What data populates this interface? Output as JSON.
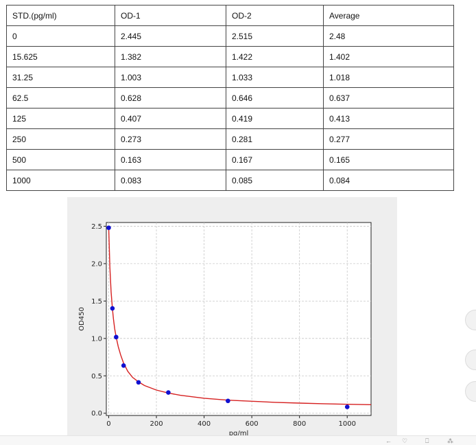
{
  "table": {
    "headers": [
      "STD.(pg/ml)",
      "OD-1",
      "OD-2",
      "Average"
    ],
    "rows": [
      [
        "0",
        "2.445",
        "2.515",
        "2.48"
      ],
      [
        "15.625",
        "1.382",
        "1.422",
        "1.402"
      ],
      [
        "31.25",
        "1.003",
        "1.033",
        "1.018"
      ],
      [
        "62.5",
        "0.628",
        "0.646",
        "0.637"
      ],
      [
        "125",
        "0.407",
        "0.419",
        "0.413"
      ],
      [
        "250",
        "0.273",
        "0.281",
        "0.277"
      ],
      [
        "500",
        "0.163",
        "0.167",
        "0.165"
      ],
      [
        "1000",
        "0.083",
        "0.085",
        "0.084"
      ]
    ]
  },
  "chart_data": {
    "type": "scatter",
    "title": "",
    "xlabel": "pg/ml",
    "ylabel": "OD450",
    "xlim": [
      -10,
      1100
    ],
    "ylim": [
      -0.03,
      2.55
    ],
    "xticks": [
      0,
      200,
      400,
      600,
      800,
      1000
    ],
    "yticks": [
      0.0,
      0.5,
      1.0,
      1.5,
      2.0,
      2.5
    ],
    "ytick_labels": [
      "0.0",
      "0.5",
      "1.0",
      "1.5",
      "2.0",
      "2.5"
    ],
    "grid": true,
    "points": {
      "x": [
        0,
        15.625,
        31.25,
        62.5,
        125,
        250,
        500,
        1000
      ],
      "y": [
        2.48,
        1.402,
        1.018,
        0.637,
        0.413,
        0.277,
        0.165,
        0.084
      ],
      "color": "#1010d0"
    },
    "fit_curve": {
      "color": "#d62020",
      "x": [
        0,
        5,
        10,
        15.625,
        20,
        25,
        31.25,
        40,
        50,
        62.5,
        80,
        100,
        125,
        150,
        200,
        250,
        300,
        400,
        500,
        600,
        700,
        800,
        900,
        1000,
        1100
      ],
      "y": [
        2.48,
        1.95,
        1.62,
        1.4,
        1.26,
        1.13,
        1.02,
        0.89,
        0.78,
        0.67,
        0.56,
        0.48,
        0.42,
        0.37,
        0.31,
        0.27,
        0.24,
        0.2,
        0.175,
        0.16,
        0.145,
        0.135,
        0.127,
        0.12,
        0.114
      ]
    }
  },
  "ui": {
    "bottom_icons": [
      "←",
      "♡",
      "⎕",
      "⁂"
    ]
  }
}
